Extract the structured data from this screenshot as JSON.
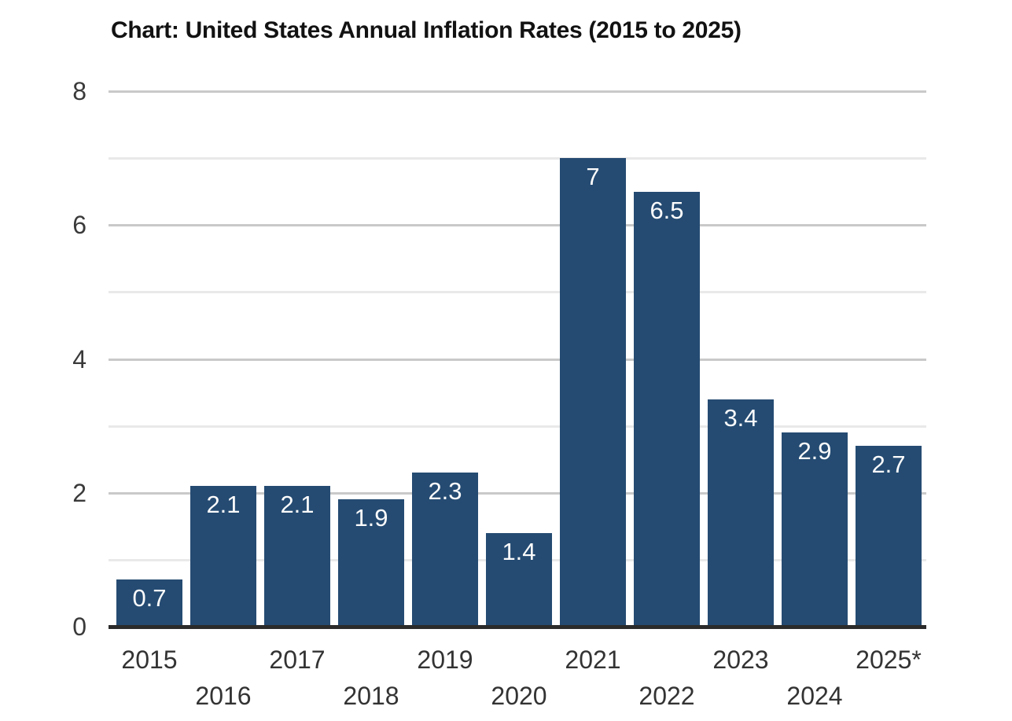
{
  "title": "Chart: United States Annual Inflation Rates (2015 to 2025)",
  "chart_data": {
    "type": "bar",
    "title": "Chart: United States Annual Inflation Rates (2015 to 2025)",
    "categories": [
      "2015",
      "2016",
      "2017",
      "2018",
      "2019",
      "2020",
      "2021",
      "2022",
      "2023",
      "2024",
      "2025*"
    ],
    "values": [
      0.7,
      2.1,
      2.1,
      1.9,
      2.3,
      1.4,
      7,
      6.5,
      3.4,
      2.9,
      2.7
    ],
    "value_labels": [
      "0.7",
      "2.1",
      "2.1",
      "1.9",
      "2.3",
      "1.4",
      "7",
      "6.5",
      "3.4",
      "2.9",
      "2.7"
    ],
    "xlabel": "",
    "ylabel": "",
    "ylim": [
      0,
      8
    ],
    "yticks": [
      0,
      2,
      4,
      6,
      8
    ],
    "minor_gridlines": [
      1,
      3,
      5,
      7
    ],
    "grid": true,
    "legend": false,
    "x_labels_staggered": true,
    "footnote_marker_year": "2025*"
  },
  "colors": {
    "bar": "#254b72",
    "bar_value_label": "#fcfcfc",
    "title_text": "#121212",
    "tick_text": "#3a3a3a",
    "x_label_text": "#333333",
    "gridline_major": "#c9c9c9",
    "gridline_minor": "#e9e9e9",
    "axis_line": "#2b2b2b",
    "background": "#ffffff"
  }
}
